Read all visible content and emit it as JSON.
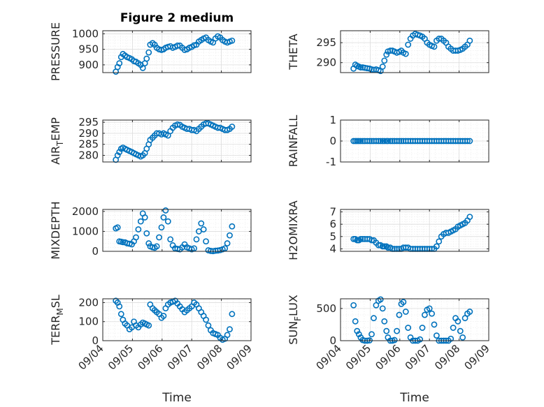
{
  "figure_title": "Figure 2 medium",
  "marker_color": "#0072BD",
  "chart_data": [
    {
      "type": "scatter",
      "ylabel": "PRESSURE",
      "ylabel_sub": "",
      "ylabel_post": "",
      "ylim": [
        875,
        1010
      ],
      "yticks": [
        900,
        950,
        1000
      ],
      "xlim": [
        0,
        5
      ],
      "xticks": [
        0,
        1,
        2,
        3,
        4,
        5
      ],
      "xtick_labels": [
        "09/04",
        "09/05",
        "09/06",
        "09/07",
        "09/08",
        "09/09"
      ],
      "show_xticklabels": false,
      "xlabel": "",
      "x": [
        0.44,
        0.5,
        0.56,
        0.62,
        0.68,
        0.75,
        0.82,
        0.9,
        0.98,
        1.05,
        1.12,
        1.2,
        1.28,
        1.35,
        1.42,
        1.48,
        1.55,
        1.6,
        1.68,
        1.75,
        1.82,
        1.9,
        1.98,
        2.05,
        2.12,
        2.2,
        2.28,
        2.36,
        2.44,
        2.52,
        2.6,
        2.68,
        2.76,
        2.84,
        2.92,
        3.0,
        3.08,
        3.16,
        3.24,
        3.32,
        3.4,
        3.48,
        3.56,
        3.64,
        3.72,
        3.8,
        3.88,
        3.96,
        4.04,
        4.12,
        4.2,
        4.28,
        4.36
      ],
      "y": [
        878,
        893,
        905,
        925,
        935,
        930,
        925,
        922,
        918,
        912,
        910,
        905,
        900,
        890,
        905,
        920,
        940,
        965,
        970,
        965,
        955,
        950,
        948,
        950,
        955,
        958,
        960,
        955,
        958,
        962,
        962,
        955,
        948,
        950,
        955,
        958,
        963,
        965,
        975,
        980,
        985,
        988,
        980,
        975,
        972,
        985,
        992,
        988,
        980,
        975,
        972,
        975,
        978
      ]
    },
    {
      "type": "scatter",
      "ylabel": "THETA",
      "ylabel_sub": "",
      "ylabel_post": "",
      "ylim": [
        287.5,
        298
      ],
      "yticks": [
        290,
        295
      ],
      "xlim": [
        0,
        5
      ],
      "xticks": [
        0,
        1,
        2,
        3,
        4,
        5
      ],
      "xtick_labels": [
        "09/04",
        "09/05",
        "09/06",
        "09/07",
        "09/08",
        "09/09"
      ],
      "show_xticklabels": false,
      "xlabel": "",
      "x": [
        0.44,
        0.5,
        0.56,
        0.62,
        0.68,
        0.75,
        0.82,
        0.9,
        0.98,
        1.05,
        1.12,
        1.2,
        1.28,
        1.35,
        1.42,
        1.48,
        1.55,
        1.6,
        1.68,
        1.75,
        1.82,
        1.9,
        1.98,
        2.05,
        2.12,
        2.2,
        2.28,
        2.36,
        2.44,
        2.52,
        2.6,
        2.68,
        2.76,
        2.84,
        2.92,
        3.0,
        3.08,
        3.16,
        3.24,
        3.32,
        3.4,
        3.48,
        3.56,
        3.64,
        3.72,
        3.8,
        3.88,
        3.96,
        4.04,
        4.12,
        4.2,
        4.28,
        4.36
      ],
      "y": [
        288.5,
        289.5,
        289.2,
        289,
        288.8,
        288.8,
        288.7,
        288.6,
        288.5,
        288.3,
        288.2,
        288.3,
        288.1,
        287.9,
        289,
        290.5,
        292,
        292.8,
        293,
        293,
        292.8,
        292.5,
        292.7,
        293,
        292.5,
        292.2,
        294.5,
        296,
        296.8,
        297.2,
        297,
        296.8,
        296.5,
        296,
        295,
        294.5,
        294.2,
        294,
        295.5,
        296,
        296,
        295.5,
        295,
        294,
        293.5,
        293,
        293,
        293,
        293.2,
        293.5,
        294,
        294.5,
        295.5
      ]
    },
    {
      "type": "scatter",
      "ylabel": "AIR",
      "ylabel_sub": "T",
      "ylabel_post": "EMP",
      "ylim": [
        277,
        296
      ],
      "yticks": [
        280,
        285,
        290,
        295
      ],
      "xlim": [
        0,
        5
      ],
      "xticks": [
        0,
        1,
        2,
        3,
        4,
        5
      ],
      "xtick_labels": [
        "09/04",
        "09/05",
        "09/06",
        "09/07",
        "09/08",
        "09/09"
      ],
      "show_xticklabels": false,
      "xlabel": "",
      "x": [
        0.44,
        0.5,
        0.56,
        0.62,
        0.68,
        0.75,
        0.82,
        0.9,
        0.98,
        1.05,
        1.12,
        1.2,
        1.28,
        1.35,
        1.42,
        1.48,
        1.55,
        1.6,
        1.68,
        1.75,
        1.82,
        1.9,
        1.98,
        2.05,
        2.12,
        2.2,
        2.28,
        2.36,
        2.44,
        2.52,
        2.6,
        2.68,
        2.76,
        2.84,
        2.92,
        3.0,
        3.08,
        3.16,
        3.24,
        3.32,
        3.4,
        3.48,
        3.56,
        3.64,
        3.72,
        3.8,
        3.88,
        3.96,
        4.04,
        4.12,
        4.2,
        4.28,
        4.36
      ],
      "y": [
        278,
        280,
        281.5,
        283,
        283.5,
        283,
        282.5,
        282,
        281.5,
        281,
        280.5,
        280,
        279.5,
        280,
        281,
        283,
        285,
        287,
        288,
        289,
        290,
        290,
        289.5,
        290,
        289.5,
        289,
        291,
        292.5,
        293.5,
        294,
        293.8,
        293,
        292.5,
        292,
        292,
        291.5,
        291.5,
        291,
        292,
        293,
        294,
        294.5,
        294.5,
        294,
        293.5,
        293,
        292.5,
        292.5,
        292,
        291.5,
        291.5,
        292,
        293
      ]
    },
    {
      "type": "scatter",
      "ylabel": "RAINFALL",
      "ylabel_sub": "",
      "ylabel_post": "",
      "ylim": [
        -1,
        1
      ],
      "yticks": [
        -1,
        0,
        1
      ],
      "xlim": [
        0,
        5
      ],
      "xticks": [
        0,
        1,
        2,
        3,
        4,
        5
      ],
      "xtick_labels": [
        "09/04",
        "09/05",
        "09/06",
        "09/07",
        "09/08",
        "09/09"
      ],
      "show_xticklabels": false,
      "xlabel": "",
      "x": [
        0.44,
        0.5,
        0.56,
        0.62,
        0.68,
        0.75,
        0.82,
        0.9,
        0.98,
        1.05,
        1.12,
        1.2,
        1.28,
        1.35,
        1.42,
        1.48,
        1.55,
        1.6,
        1.68,
        1.75,
        1.82,
        1.9,
        1.98,
        2.05,
        2.12,
        2.2,
        2.28,
        2.36,
        2.44,
        2.52,
        2.6,
        2.68,
        2.76,
        2.84,
        2.92,
        3.0,
        3.08,
        3.16,
        3.24,
        3.32,
        3.4,
        3.48,
        3.56,
        3.64,
        3.72,
        3.8,
        3.88,
        3.96,
        4.04,
        4.12,
        4.2,
        4.28,
        4.36
      ],
      "y": [
        0,
        0,
        0,
        0,
        0,
        0,
        0,
        0,
        0,
        0,
        0,
        0,
        0,
        0,
        0,
        0,
        0,
        0,
        0,
        0,
        0,
        0,
        0,
        0,
        0,
        0,
        0,
        0,
        0,
        0,
        0,
        0,
        0,
        0,
        0,
        0,
        0,
        0,
        0,
        0,
        0,
        0,
        0,
        0,
        0,
        0,
        0,
        0,
        0,
        0,
        0,
        0,
        0
      ]
    },
    {
      "type": "scatter",
      "ylabel": "MIXDEPTH",
      "ylabel_sub": "",
      "ylabel_post": "",
      "ylim": [
        0,
        2100
      ],
      "yticks": [
        0,
        1000,
        2000
      ],
      "xlim": [
        0,
        5
      ],
      "xticks": [
        0,
        1,
        2,
        3,
        4,
        5
      ],
      "xtick_labels": [
        "09/04",
        "09/05",
        "09/06",
        "09/07",
        "09/08",
        "09/09"
      ],
      "show_xticklabels": false,
      "xlabel": "",
      "x": [
        0.44,
        0.5,
        0.56,
        0.62,
        0.68,
        0.75,
        0.82,
        0.9,
        0.98,
        1.05,
        1.12,
        1.2,
        1.28,
        1.35,
        1.42,
        1.48,
        1.55,
        1.6,
        1.68,
        1.75,
        1.82,
        1.9,
        1.98,
        2.05,
        2.12,
        2.2,
        2.28,
        2.36,
        2.44,
        2.52,
        2.6,
        2.68,
        2.76,
        2.84,
        2.92,
        3.0,
        3.08,
        3.16,
        3.24,
        3.32,
        3.4,
        3.48,
        3.56,
        3.64,
        3.72,
        3.8,
        3.88,
        3.96,
        4.04,
        4.12,
        4.2,
        4.28,
        4.36
      ],
      "y": [
        1150,
        1200,
        500,
        480,
        460,
        450,
        400,
        380,
        350,
        500,
        700,
        1100,
        1500,
        1900,
        1700,
        900,
        400,
        250,
        200,
        180,
        250,
        700,
        1200,
        1700,
        2050,
        1500,
        600,
        300,
        150,
        120,
        100,
        200,
        350,
        200,
        150,
        100,
        150,
        600,
        1000,
        1400,
        1100,
        500,
        50,
        20,
        10,
        30,
        40,
        60,
        100,
        150,
        400,
        800,
        1250
      ]
    },
    {
      "type": "scatter",
      "ylabel": "H2OMIXRA",
      "ylabel_sub": "",
      "ylabel_post": "",
      "ylim": [
        3.8,
        7.2
      ],
      "yticks": [
        4,
        5,
        6,
        7
      ],
      "xlim": [
        0,
        5
      ],
      "xticks": [
        0,
        1,
        2,
        3,
        4,
        5
      ],
      "xtick_labels": [
        "09/04",
        "09/05",
        "09/06",
        "09/07",
        "09/08",
        "09/09"
      ],
      "show_xticklabels": false,
      "xlabel": "",
      "x": [
        0.44,
        0.5,
        0.56,
        0.62,
        0.68,
        0.75,
        0.82,
        0.9,
        0.98,
        1.05,
        1.12,
        1.2,
        1.28,
        1.35,
        1.42,
        1.48,
        1.55,
        1.6,
        1.68,
        1.75,
        1.82,
        1.9,
        1.98,
        2.05,
        2.12,
        2.2,
        2.28,
        2.36,
        2.44,
        2.52,
        2.6,
        2.68,
        2.76,
        2.84,
        2.92,
        3.0,
        3.08,
        3.16,
        3.24,
        3.32,
        3.4,
        3.48,
        3.56,
        3.64,
        3.72,
        3.8,
        3.88,
        3.96,
        4.04,
        4.12,
        4.2,
        4.28,
        4.36
      ],
      "y": [
        4.8,
        4.8,
        4.7,
        4.7,
        4.8,
        4.8,
        4.8,
        4.8,
        4.8,
        4.7,
        4.7,
        4.5,
        4.3,
        4.3,
        4.2,
        4.2,
        4.2,
        4.1,
        4.1,
        4.0,
        4.0,
        4.0,
        4.0,
        4.0,
        4.1,
        4.1,
        4.1,
        4.0,
        4.0,
        4.0,
        4.0,
        4.0,
        4.0,
        4.0,
        4.0,
        4.0,
        4.0,
        4.0,
        4.2,
        4.6,
        5.0,
        5.2,
        5.3,
        5.3,
        5.4,
        5.5,
        5.6,
        5.8,
        5.9,
        6.0,
        6.1,
        6.3,
        6.6
      ]
    },
    {
      "type": "scatter",
      "ylabel": "TERR",
      "ylabel_sub": "M",
      "ylabel_post": "SL",
      "ylim": [
        0,
        220
      ],
      "yticks": [
        0,
        100,
        200
      ],
      "xlim": [
        0,
        5
      ],
      "xticks": [
        0,
        1,
        2,
        3,
        4,
        5
      ],
      "xtick_labels": [
        "09/04",
        "09/05",
        "09/06",
        "09/07",
        "09/08",
        "09/09"
      ],
      "show_xticklabels": true,
      "xlabel": "Time",
      "x": [
        0.44,
        0.5,
        0.56,
        0.62,
        0.68,
        0.75,
        0.82,
        0.9,
        0.98,
        1.05,
        1.12,
        1.2,
        1.28,
        1.35,
        1.42,
        1.48,
        1.55,
        1.6,
        1.68,
        1.75,
        1.82,
        1.9,
        1.98,
        2.05,
        2.12,
        2.2,
        2.28,
        2.36,
        2.44,
        2.52,
        2.6,
        2.68,
        2.76,
        2.84,
        2.92,
        3.0,
        3.08,
        3.16,
        3.24,
        3.32,
        3.4,
        3.48,
        3.56,
        3.64,
        3.72,
        3.8,
        3.88,
        3.96,
        4.04,
        4.12,
        4.2,
        4.28,
        4.36
      ],
      "y": [
        210,
        200,
        180,
        140,
        110,
        90,
        80,
        60,
        70,
        100,
        80,
        70,
        85,
        95,
        90,
        85,
        80,
        190,
        170,
        160,
        150,
        140,
        120,
        130,
        170,
        190,
        200,
        205,
        210,
        195,
        180,
        165,
        150,
        160,
        170,
        180,
        200,
        190,
        170,
        150,
        130,
        110,
        80,
        55,
        40,
        35,
        30,
        15,
        5,
        10,
        30,
        60,
        140
      ]
    },
    {
      "type": "scatter",
      "ylabel": "SUN",
      "ylabel_sub": "F",
      "ylabel_post": "LUX",
      "ylim": [
        0,
        650
      ],
      "yticks": [
        0,
        500
      ],
      "xlim": [
        0,
        5
      ],
      "xticks": [
        0,
        1,
        2,
        3,
        4,
        5
      ],
      "xtick_labels": [
        "09/04",
        "09/05",
        "09/06",
        "09/07",
        "09/08",
        "09/09"
      ],
      "show_xticklabels": true,
      "xlabel": "Time",
      "x": [
        0.44,
        0.5,
        0.56,
        0.62,
        0.68,
        0.75,
        0.82,
        0.9,
        0.98,
        1.05,
        1.12,
        1.2,
        1.28,
        1.35,
        1.42,
        1.48,
        1.55,
        1.6,
        1.68,
        1.75,
        1.82,
        1.9,
        1.98,
        2.05,
        2.12,
        2.2,
        2.28,
        2.36,
        2.44,
        2.52,
        2.6,
        2.68,
        2.76,
        2.84,
        2.92,
        3.0,
        3.08,
        3.16,
        3.24,
        3.32,
        3.4,
        3.48,
        3.56,
        3.64,
        3.72,
        3.8,
        3.88,
        3.96,
        4.04,
        4.12,
        4.2,
        4.28,
        4.36
      ],
      "y": [
        550,
        300,
        150,
        100,
        50,
        10,
        0,
        0,
        5,
        100,
        350,
        550,
        620,
        640,
        500,
        300,
        150,
        50,
        0,
        0,
        10,
        150,
        400,
        570,
        600,
        450,
        200,
        50,
        0,
        0,
        0,
        20,
        200,
        400,
        480,
        500,
        420,
        250,
        80,
        0,
        0,
        0,
        0,
        0,
        30,
        200,
        350,
        300,
        150,
        50,
        350,
        420,
        450
      ]
    }
  ]
}
